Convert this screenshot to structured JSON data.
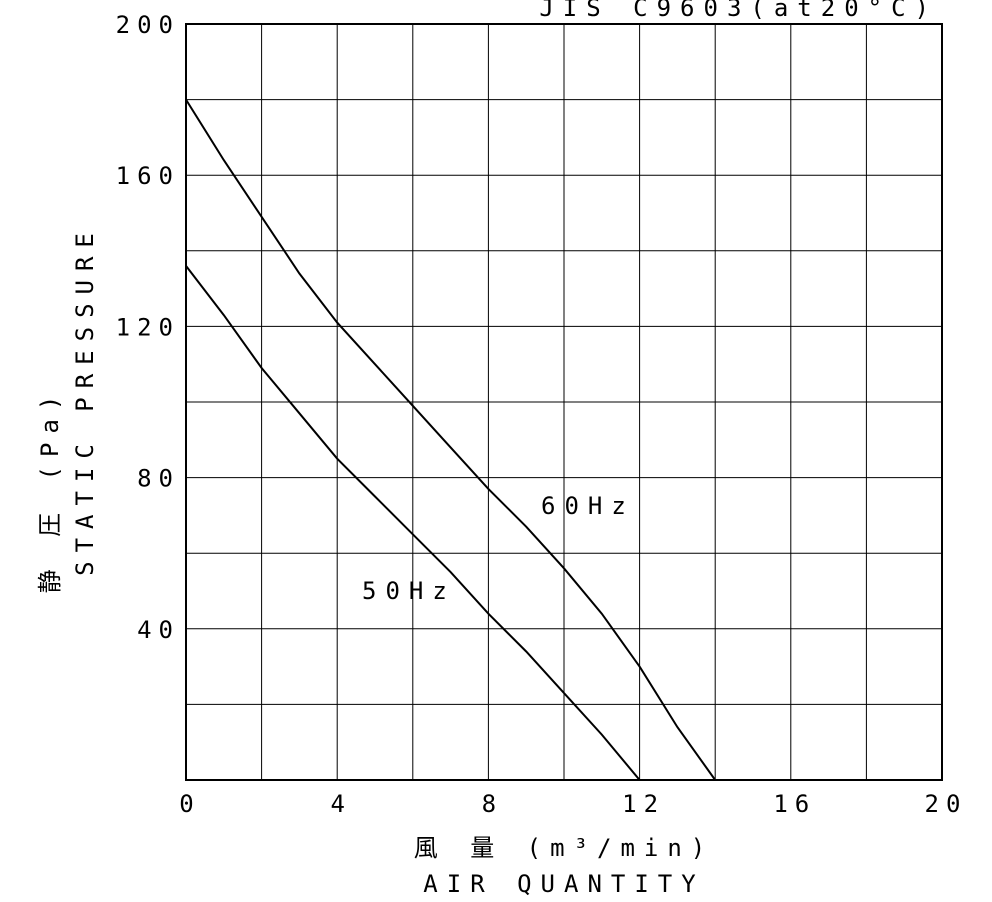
{
  "chart_data": {
    "type": "line",
    "title": "JIS C9603(at20°C)",
    "xlabel_jp": "風 量 (m³/min)",
    "xlabel": "AIR QUANTITY",
    "ylabel_jp": "静 圧 (Pa)",
    "ylabel": "STATIC PRESSURE",
    "xlim": [
      0,
      20
    ],
    "ylim": [
      0,
      200
    ],
    "x_ticks": [
      "0",
      "4",
      "8",
      "12",
      "16",
      "20"
    ],
    "y_ticks": [
      "40",
      "80",
      "120",
      "160",
      "200"
    ],
    "grid": true,
    "series": [
      {
        "name": "60Hz",
        "x": [
          0,
          1,
          2,
          3,
          4,
          5,
          6,
          7,
          8,
          9,
          10,
          11,
          12,
          13,
          14
        ],
        "y": [
          180,
          164,
          149,
          134,
          121,
          110,
          99,
          88,
          77,
          67,
          56,
          44,
          30,
          14,
          0
        ]
      },
      {
        "name": "50Hz",
        "x": [
          0,
          1,
          2,
          3,
          4,
          5,
          6,
          7,
          8,
          9,
          10,
          11,
          12
        ],
        "y": [
          136,
          123,
          109,
          97,
          85,
          75,
          65,
          55,
          44,
          34,
          23,
          12,
          0
        ]
      }
    ]
  }
}
